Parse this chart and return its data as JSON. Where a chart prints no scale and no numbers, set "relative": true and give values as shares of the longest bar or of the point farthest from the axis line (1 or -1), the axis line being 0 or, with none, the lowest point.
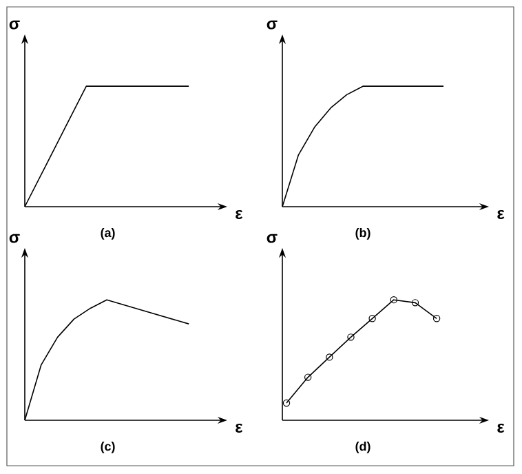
{
  "chart_data": [
    {
      "type": "line",
      "relative": true,
      "xlabel": "ε",
      "ylabel": "σ",
      "annotations": [
        "(a)"
      ],
      "color": "#000000",
      "categories": [
        null,
        null,
        null,
        null,
        null,
        null,
        null,
        null,
        null
      ],
      "values": [
        0,
        0.333,
        0.667,
        1,
        1,
        1,
        1,
        1,
        1
      ]
    },
    {
      "type": "line",
      "relative": true,
      "xlabel": "ε",
      "ylabel": "σ",
      "annotations": [
        "(b)"
      ],
      "color": "#000000",
      "categories": [
        null,
        null,
        null,
        null,
        null,
        null,
        null,
        null,
        null,
        null,
        null
      ],
      "values": [
        0,
        0.43,
        0.66,
        0.82,
        0.93,
        1,
        1,
        1,
        1,
        1,
        1
      ]
    },
    {
      "type": "line",
      "relative": true,
      "xlabel": "ε",
      "ylabel": "σ",
      "annotations": [
        "(c)"
      ],
      "color": "#000000",
      "categories": [
        null,
        null,
        null,
        null,
        null,
        null,
        null,
        null,
        null,
        null,
        null
      ],
      "values": [
        0,
        0.46,
        0.69,
        0.84,
        0.93,
        1,
        0.96,
        0.92,
        0.88,
        0.84,
        0.8
      ]
    },
    {
      "type": "line",
      "relative": true,
      "xlabel": "ε",
      "ylabel": "σ",
      "annotations": [
        "(d)"
      ],
      "marker": "circle",
      "color": "#000000",
      "categories": [
        null,
        null,
        null,
        null,
        null,
        null,
        null,
        null
      ],
      "values": [
        0.143,
        0.357,
        0.524,
        0.69,
        0.845,
        1,
        0.976,
        0.845
      ]
    }
  ]
}
